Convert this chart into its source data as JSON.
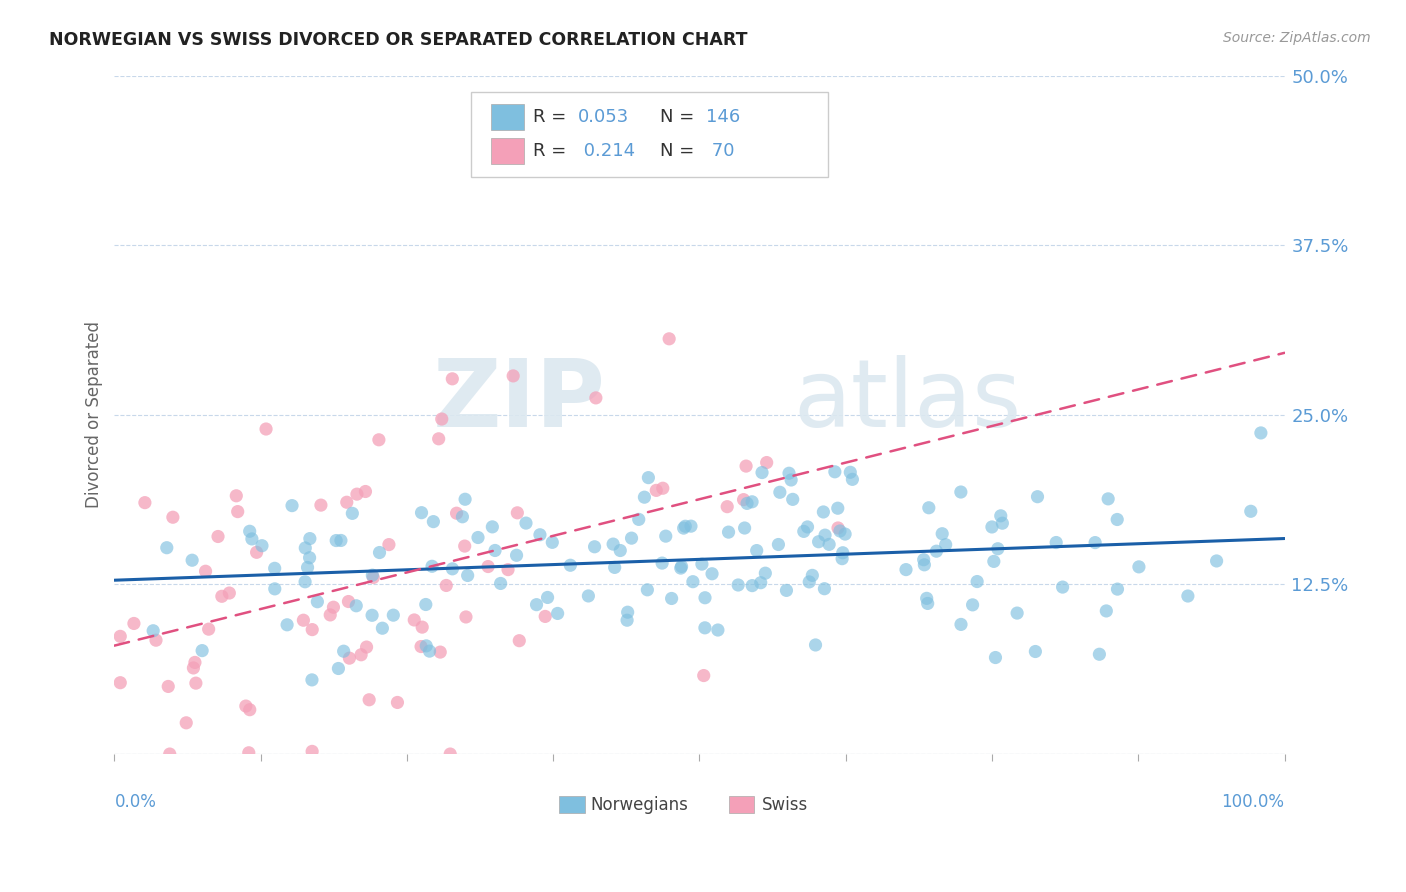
{
  "title": "NORWEGIAN VS SWISS DIVORCED OR SEPARATED CORRELATION CHART",
  "source": "Source: ZipAtlas.com",
  "ylabel": "Divorced or Separated",
  "norwegian_color": "#7fbfdf",
  "swiss_color": "#f4a0b8",
  "norwegian_line_color": "#1a5fa8",
  "swiss_line_color": "#e05080",
  "watermark_zip": "ZIP",
  "watermark_atlas": "atlas",
  "background_color": "#ffffff",
  "norway_N": 146,
  "swiss_N": 70,
  "norway_seed": 12,
  "swiss_seed": 77,
  "ytick_color": "#5b9bd5",
  "xlabel_color": "#5b9bd5"
}
